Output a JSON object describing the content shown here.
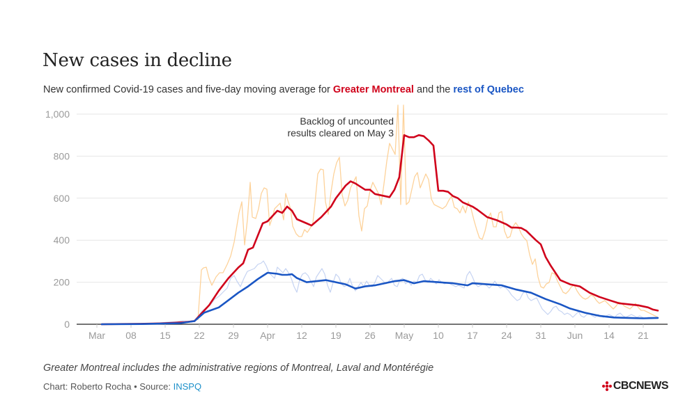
{
  "title": "New cases in decline",
  "subtitle": {
    "prefix": "New confirmed Covid-19 cases and five-day moving average for ",
    "montreal": "Greater Montreal",
    "middle": " and the ",
    "quebec": "rest of Quebec"
  },
  "annotation": {
    "line1": "Backlog of uncounted",
    "line2": "results cleared on May 3"
  },
  "footnote": "Greater Montreal includes the administrative regions of Montreal, Laval and Montérégie",
  "credit": {
    "prefix": "Chart: Roberto Rocha • Source: ",
    "source": "INSPQ"
  },
  "logo": {
    "text": "CBCNEWS",
    "icon": "cbc-gem-icon"
  },
  "colors": {
    "montreal": "#d0021b",
    "montreal_raw": "#fdd29a",
    "quebec": "#1a56c4",
    "quebec_raw": "#c5d3f2",
    "grid": "#e6e6e6",
    "axis_text": "#9a9a9a"
  },
  "chart_data": {
    "type": "line",
    "x_start": "2020-03-02",
    "x_end": "2020-06-24",
    "ylim": [
      0,
      1000
    ],
    "y_ticks": [
      "0",
      "200",
      "400",
      "600",
      "800",
      "1,000"
    ],
    "x_ticks": [
      {
        "date": "2020-03-01",
        "label": "Mar"
      },
      {
        "date": "2020-03-08",
        "label": "08"
      },
      {
        "date": "2020-03-15",
        "label": "15"
      },
      {
        "date": "2020-03-22",
        "label": "22"
      },
      {
        "date": "2020-03-29",
        "label": "29"
      },
      {
        "date": "2020-04-05",
        "label": "Apr"
      },
      {
        "date": "2020-04-12",
        "label": "12"
      },
      {
        "date": "2020-04-19",
        "label": "19"
      },
      {
        "date": "2020-04-26",
        "label": "26"
      },
      {
        "date": "2020-05-03",
        "label": "May"
      },
      {
        "date": "2020-05-10",
        "label": "10"
      },
      {
        "date": "2020-05-17",
        "label": "17"
      },
      {
        "date": "2020-05-24",
        "label": "24"
      },
      {
        "date": "2020-05-31",
        "label": "31"
      },
      {
        "date": "2020-06-07",
        "label": "Jun"
      },
      {
        "date": "2020-06-14",
        "label": "14"
      },
      {
        "date": "2020-06-21",
        "label": "21"
      }
    ],
    "grid": true,
    "series": [
      {
        "name": "Greater Montreal",
        "dates": [
          "2020-03-02",
          "2020-03-06",
          "2020-03-10",
          "2020-03-14",
          "2020-03-17",
          "2020-03-19",
          "2020-03-21",
          "2020-03-22",
          "2020-03-24",
          "2020-03-26",
          "2020-03-28",
          "2020-03-30",
          "2020-03-31",
          "2020-04-01",
          "2020-04-02",
          "2020-04-04",
          "2020-04-05",
          "2020-04-07",
          "2020-04-08",
          "2020-04-09",
          "2020-04-10",
          "2020-04-11",
          "2020-04-13",
          "2020-04-14",
          "2020-04-16",
          "2020-04-18",
          "2020-04-19",
          "2020-04-21",
          "2020-04-22",
          "2020-04-23",
          "2020-04-25",
          "2020-04-26",
          "2020-04-27",
          "2020-04-28",
          "2020-04-30",
          "2020-05-01",
          "2020-05-02",
          "2020-05-03",
          "2020-05-04",
          "2020-05-05",
          "2020-05-06",
          "2020-05-07",
          "2020-05-08",
          "2020-05-09",
          "2020-05-10",
          "2020-05-11",
          "2020-05-12",
          "2020-05-13",
          "2020-05-14",
          "2020-05-15",
          "2020-05-17",
          "2020-05-18",
          "2020-05-20",
          "2020-05-22",
          "2020-05-24",
          "2020-05-25",
          "2020-05-26",
          "2020-05-27",
          "2020-05-28",
          "2020-05-30",
          "2020-05-31",
          "2020-06-01",
          "2020-06-02",
          "2020-06-04",
          "2020-06-06",
          "2020-06-08",
          "2020-06-10",
          "2020-06-12",
          "2020-06-14",
          "2020-06-16",
          "2020-06-18",
          "2020-06-20",
          "2020-06-22",
          "2020-06-23",
          "2020-06-24"
        ],
        "values": [
          0,
          1,
          2,
          4,
          7,
          10,
          15,
          40,
          90,
          160,
          220,
          270,
          290,
          355,
          365,
          480,
          490,
          540,
          530,
          560,
          540,
          500,
          480,
          470,
          510,
          560,
          600,
          660,
          680,
          670,
          640,
          640,
          620,
          615,
          605,
          640,
          700,
          900,
          890,
          890,
          900,
          895,
          875,
          850,
          635,
          635,
          630,
          610,
          600,
          580,
          560,
          545,
          510,
          495,
          475,
          460,
          460,
          458,
          445,
          400,
          380,
          320,
          280,
          210,
          190,
          180,
          150,
          130,
          115,
          100,
          95,
          90,
          80,
          70,
          65
        ]
      },
      {
        "name": "Rest of Quebec",
        "dates": [
          "2020-03-02",
          "2020-03-10",
          "2020-03-18",
          "2020-03-21",
          "2020-03-23",
          "2020-03-26",
          "2020-03-28",
          "2020-03-30",
          "2020-04-01",
          "2020-04-03",
          "2020-04-04",
          "2020-04-05",
          "2020-04-07",
          "2020-04-08",
          "2020-04-09",
          "2020-04-10",
          "2020-04-11",
          "2020-04-13",
          "2020-04-17",
          "2020-04-19",
          "2020-04-21",
          "2020-04-23",
          "2020-04-25",
          "2020-04-27",
          "2020-04-29",
          "2020-05-01",
          "2020-05-03",
          "2020-05-05",
          "2020-05-07",
          "2020-05-10",
          "2020-05-13",
          "2020-05-16",
          "2020-05-17",
          "2020-05-20",
          "2020-05-23",
          "2020-05-26",
          "2020-05-29",
          "2020-06-01",
          "2020-06-04",
          "2020-06-06",
          "2020-06-09",
          "2020-06-12",
          "2020-06-15",
          "2020-06-18",
          "2020-06-21",
          "2020-06-24"
        ],
        "values": [
          0,
          1,
          5,
          15,
          55,
          80,
          115,
          150,
          180,
          215,
          230,
          245,
          240,
          235,
          235,
          238,
          220,
          200,
          210,
          200,
          190,
          170,
          180,
          185,
          195,
          205,
          210,
          195,
          205,
          200,
          195,
          185,
          195,
          190,
          185,
          165,
          150,
          120,
          95,
          75,
          55,
          40,
          32,
          30,
          28,
          30
        ]
      }
    ]
  }
}
